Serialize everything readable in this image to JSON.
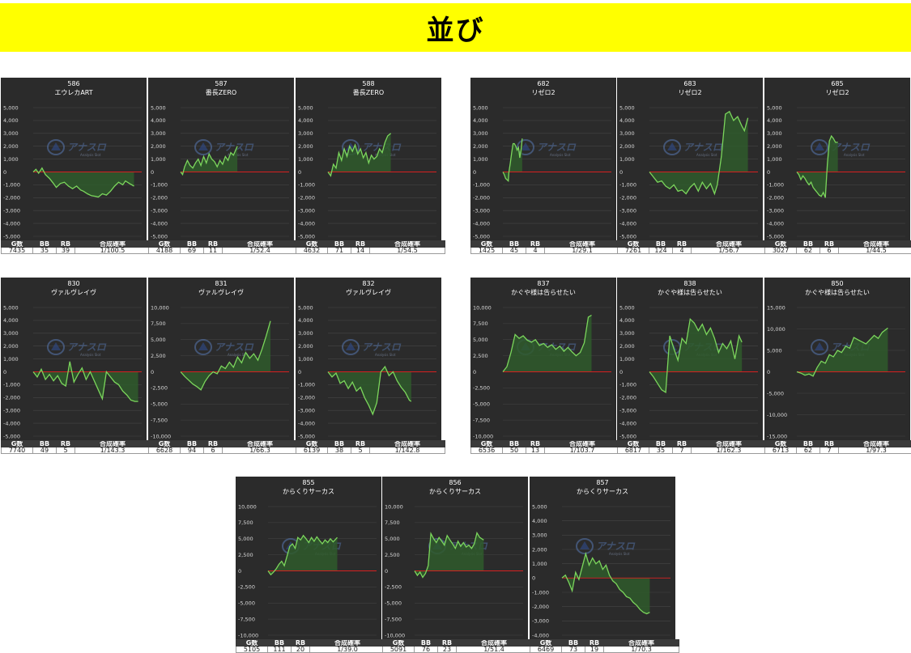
{
  "header": {
    "title": "並び"
  },
  "colors": {
    "banner": "#ffff00",
    "background": "#2b2b2b",
    "line": "#7bd65c",
    "fill": "#2f5b2c",
    "zero": "#d62020"
  },
  "watermark": {
    "brand": "アナスロ",
    "tagline": "Analysis Slot"
  },
  "stat_headers": {
    "g": "G数",
    "bb": "BB",
    "rb": "RB",
    "rate": "合成確率"
  },
  "chart_data": [
    {
      "type": "line",
      "number": "586",
      "title": "エウレカART",
      "ylim": [
        -5000,
        5000
      ],
      "yticks": [
        "5,000",
        "4,000",
        "3,000",
        "2,000",
        "1,000",
        "0",
        "-1,000",
        "-2,000",
        "-3,000",
        "-4,000",
        "-5,000"
      ],
      "x": [
        0,
        200,
        400,
        650,
        900,
        1200,
        1500,
        1700,
        2000,
        2300,
        2600,
        2900,
        3200,
        3500,
        3700,
        4000,
        4300,
        4600,
        4800,
        5100,
        5400,
        5700,
        6000,
        6300,
        6600,
        6800,
        7100,
        7435
      ],
      "y": [
        0,
        200,
        -100,
        300,
        -200,
        -500,
        -900,
        -1200,
        -900,
        -800,
        -1100,
        -1300,
        -1100,
        -1400,
        -1500,
        -1700,
        -1850,
        -1900,
        -1950,
        -1700,
        -1800,
        -1500,
        -1100,
        -800,
        -1000,
        -700,
        -900,
        -1100
      ],
      "stats": {
        "g": "7435",
        "bb": "35",
        "rb": "39",
        "rate": "1/100.5"
      }
    },
    {
      "type": "line",
      "number": "587",
      "title": "番長ZERO",
      "ylim": [
        -5000,
        5000
      ],
      "yticks": [
        "5,000",
        "4,000",
        "3,000",
        "2,000",
        "1,000",
        "0",
        "-1,000",
        "-2,000",
        "-3,000",
        "-4,000",
        "-5,000"
      ],
      "x": [
        0,
        150,
        300,
        500,
        700,
        900,
        1100,
        1300,
        1500,
        1700,
        1900,
        2100,
        2300,
        2500,
        2700,
        2900,
        3100,
        3300,
        3500,
        3700,
        3900,
        4188
      ],
      "y": [
        0,
        -200,
        400,
        900,
        500,
        300,
        700,
        1000,
        500,
        1200,
        700,
        1400,
        1000,
        800,
        400,
        900,
        600,
        1200,
        900,
        1500,
        1300,
        2000
      ],
      "stats": {
        "g": "4188",
        "bb": "69",
        "rb": "11",
        "rate": "1/52.4"
      }
    },
    {
      "type": "line",
      "number": "588",
      "title": "番長ZERO",
      "ylim": [
        -5000,
        5000
      ],
      "yticks": [
        "5,000",
        "4,000",
        "3,000",
        "2,000",
        "1,000",
        "0",
        "-1,000",
        "-2,000",
        "-3,000",
        "-4,000",
        "-5,000"
      ],
      "x": [
        0,
        200,
        400,
        600,
        800,
        1000,
        1200,
        1400,
        1600,
        1800,
        2000,
        2200,
        2400,
        2600,
        2800,
        3000,
        3200,
        3400,
        3600,
        3800,
        4000,
        4200,
        4400,
        4632
      ],
      "y": [
        0,
        -300,
        600,
        300,
        1500,
        900,
        1800,
        1200,
        2000,
        1600,
        2100,
        1400,
        1800,
        1100,
        1500,
        700,
        1300,
        1000,
        1200,
        1800,
        1500,
        2300,
        2800,
        3000
      ],
      "stats": {
        "g": "4632",
        "bb": "71",
        "rb": "14",
        "rate": "1/54.5"
      }
    },
    {
      "type": "line",
      "number": "682",
      "title": "リゼロ2",
      "ylim": [
        -5000,
        5000
      ],
      "yticks": [
        "5,000",
        "4,000",
        "3,000",
        "2,000",
        "1,000",
        "0",
        "-1,000",
        "-2,000",
        "-3,000",
        "-4,000",
        "-5,000"
      ],
      "x": [
        0,
        100,
        200,
        300,
        400,
        450,
        550,
        650,
        750,
        850,
        950,
        1050,
        1150,
        1250,
        1350,
        1425
      ],
      "y": [
        0,
        -200,
        -500,
        -600,
        -700,
        0,
        700,
        1500,
        2200,
        2200,
        2000,
        1700,
        1900,
        1100,
        1800,
        2600
      ],
      "stats": {
        "g": "1425",
        "bb": "45",
        "rb": "4",
        "rate": "1/29.1"
      }
    },
    {
      "type": "line",
      "number": "683",
      "title": "リゼロ2",
      "ylim": [
        -5000,
        5000
      ],
      "yticks": [
        "5,000",
        "4,000",
        "3,000",
        "2,000",
        "1,000",
        "0",
        "-1,000",
        "-2,000",
        "-3,000",
        "-4,000",
        "-5,000"
      ],
      "x": [
        0,
        300,
        600,
        900,
        1200,
        1500,
        1800,
        2100,
        2400,
        2700,
        3000,
        3300,
        3600,
        3900,
        4200,
        4500,
        4800,
        5000,
        5300,
        5600,
        5900,
        6200,
        6500,
        6800,
        7000,
        7261
      ],
      "y": [
        0,
        -400,
        -800,
        -700,
        -1100,
        -1300,
        -1000,
        -1500,
        -1400,
        -1700,
        -1200,
        -900,
        -1500,
        -800,
        -1300,
        -900,
        -1700,
        -1000,
        1200,
        4500,
        4700,
        4000,
        4300,
        3600,
        3200,
        4200
      ],
      "stats": {
        "g": "7261",
        "bb": "124",
        "rb": "4",
        "rate": "1/56.7"
      }
    },
    {
      "type": "line",
      "number": "685",
      "title": "リゼロ2",
      "ylim": [
        -5000,
        5000
      ],
      "yticks": [
        "5,000",
        "4,000",
        "3,000",
        "2,000",
        "1,000",
        "0",
        "-1,000",
        "-2,000",
        "-3,000",
        "-4,000",
        "-5,000"
      ],
      "x": [
        0,
        150,
        300,
        450,
        600,
        750,
        900,
        1050,
        1200,
        1350,
        1500,
        1650,
        1800,
        1950,
        2100,
        2250,
        2400,
        2550,
        2700,
        2850,
        3027
      ],
      "y": [
        0,
        -200,
        -600,
        -300,
        -500,
        -800,
        -1000,
        -800,
        -1200,
        -1400,
        -1600,
        -1800,
        -1900,
        -1600,
        -2000,
        600,
        2400,
        2800,
        2600,
        2300,
        2300
      ],
      "stats": {
        "g": "3027",
        "bb": "62",
        "rb": "6",
        "rate": "1/44.5"
      }
    },
    {
      "type": "line",
      "number": "830",
      "title": "ヴァルヴレイヴ",
      "ylim": [
        -5000,
        5000
      ],
      "yticks": [
        "5,000",
        "4,000",
        "3,000",
        "2,000",
        "1,000",
        "0",
        "-1,000",
        "-2,000",
        "-3,000",
        "-4,000",
        "-5,000"
      ],
      "x": [
        0,
        300,
        600,
        900,
        1200,
        1500,
        1800,
        2100,
        2400,
        2700,
        3000,
        3300,
        3600,
        3900,
        4200,
        4500,
        4800,
        5100,
        5400,
        5700,
        6000,
        6300,
        6600,
        6900,
        7200,
        7500,
        7740
      ],
      "y": [
        0,
        -400,
        200,
        -600,
        -200,
        -700,
        -300,
        -900,
        -1100,
        800,
        -800,
        -200,
        300,
        -600,
        0,
        -700,
        -1400,
        -2100,
        0,
        -400,
        -800,
        -1000,
        -1500,
        -1800,
        -2200,
        -2300,
        -2300
      ],
      "stats": {
        "g": "7740",
        "bb": "49",
        "rb": "5",
        "rate": "1/143.3"
      }
    },
    {
      "type": "line",
      "number": "831",
      "title": "ヴァルヴレイヴ",
      "ylim": [
        -10000,
        10000
      ],
      "yticks": [
        "10,000",
        "7,500",
        "5,000",
        "2,500",
        "0",
        "-2,500",
        "-5,000",
        "-7,500",
        "-10,000"
      ],
      "x": [
        0,
        300,
        600,
        900,
        1200,
        1500,
        1800,
        2100,
        2400,
        2700,
        3000,
        3300,
        3600,
        3900,
        4200,
        4500,
        4800,
        5100,
        5400,
        5700,
        6000,
        6300,
        6628
      ],
      "y": [
        0,
        -700,
        -1300,
        -1900,
        -2300,
        -2800,
        -1500,
        -600,
        0,
        -300,
        900,
        500,
        1500,
        700,
        2300,
        1400,
        3000,
        2100,
        2800,
        1800,
        3500,
        5500,
        7900
      ],
      "stats": {
        "g": "6628",
        "bb": "94",
        "rb": "6",
        "rate": "1/66.3"
      }
    },
    {
      "type": "line",
      "number": "832",
      "title": "ヴァルヴレイヴ",
      "ylim": [
        -5000,
        5000
      ],
      "yticks": [
        "5,000",
        "4,000",
        "3,000",
        "2,000",
        "1,000",
        "0",
        "-1,000",
        "-2,000",
        "-3,000",
        "-4,000",
        "-5,000"
      ],
      "x": [
        0,
        300,
        600,
        900,
        1200,
        1500,
        1800,
        2100,
        2400,
        2700,
        3000,
        3300,
        3600,
        3900,
        4200,
        4500,
        4800,
        5100,
        5400,
        5700,
        6000,
        6139
      ],
      "y": [
        0,
        -400,
        -100,
        -900,
        -700,
        -1300,
        -800,
        -1500,
        -1200,
        -2000,
        -2600,
        -3300,
        -2400,
        0,
        400,
        -300,
        0,
        -700,
        -1200,
        -1600,
        -2200,
        -2300
      ],
      "stats": {
        "g": "6139",
        "bb": "38",
        "rb": "5",
        "rate": "1/142.8"
      }
    },
    {
      "type": "line",
      "number": "837",
      "title": "かぐや様は告らせたい",
      "ylim": [
        -10000,
        10000
      ],
      "yticks": [
        "10,000",
        "7,500",
        "5,000",
        "2,500",
        "0",
        "-2,500",
        "-5,000",
        "-7,500",
        "-10,000"
      ],
      "x": [
        0,
        300,
        600,
        900,
        1200,
        1500,
        1800,
        2100,
        2400,
        2700,
        3000,
        3300,
        3600,
        3900,
        4200,
        4500,
        4800,
        5100,
        5400,
        5700,
        6000,
        6300,
        6536
      ],
      "y": [
        0,
        800,
        3000,
        5800,
        5200,
        5600,
        4900,
        4600,
        5000,
        4100,
        4400,
        3800,
        4200,
        3500,
        4000,
        3200,
        3800,
        3100,
        2500,
        3000,
        4500,
        8500,
        8800
      ],
      "stats": {
        "g": "6536",
        "bb": "50",
        "rb": "13",
        "rate": "1/103.7"
      }
    },
    {
      "type": "line",
      "number": "838",
      "title": "かぐや様は告らせたい",
      "ylim": [
        -5000,
        5000
      ],
      "yticks": [
        "5,000",
        "4,000",
        "3,000",
        "2,000",
        "1,000",
        "0",
        "-1,000",
        "-2,000",
        "-3,000",
        "-4,000",
        "-5,000"
      ],
      "x": [
        0,
        300,
        600,
        900,
        1200,
        1500,
        1800,
        2100,
        2400,
        2700,
        3000,
        3300,
        3600,
        3900,
        4200,
        4500,
        4800,
        5100,
        5400,
        5700,
        6000,
        6300,
        6600,
        6817
      ],
      "y": [
        0,
        -400,
        -900,
        -1400,
        -1600,
        2800,
        1800,
        900,
        2600,
        2200,
        4100,
        3800,
        3200,
        3700,
        2900,
        3400,
        2600,
        1500,
        2200,
        1800,
        2400,
        1000,
        2800,
        2300
      ],
      "stats": {
        "g": "6817",
        "bb": "35",
        "rb": "7",
        "rate": "1/162.3"
      }
    },
    {
      "type": "line",
      "number": "850",
      "title": "かぐや様は告らせたい",
      "ylim": [
        -15000,
        15000
      ],
      "yticks": [
        "15,000",
        "10,000",
        "5,000",
        "0",
        "-5,000",
        "-10,000",
        "-15,000"
      ],
      "x": [
        0,
        300,
        600,
        900,
        1200,
        1500,
        1800,
        2100,
        2400,
        2700,
        3000,
        3300,
        3600,
        3900,
        4200,
        4500,
        4800,
        5100,
        5400,
        5700,
        6000,
        6300,
        6713
      ],
      "y": [
        0,
        -300,
        -800,
        -500,
        -1000,
        1000,
        2500,
        2000,
        4000,
        3500,
        5000,
        4500,
        6000,
        5500,
        8000,
        7500,
        7000,
        6500,
        7500,
        8500,
        7800,
        9200,
        10200
      ],
      "stats": {
        "g": "6713",
        "bb": "62",
        "rb": "7",
        "rate": "1/97.3"
      }
    },
    {
      "type": "line",
      "number": "855",
      "title": "からくりサーカス",
      "ylim": [
        -10000,
        10000
      ],
      "yticks": [
        "10,000",
        "7,500",
        "5,000",
        "2,500",
        "0",
        "-2,500",
        "-5,000",
        "-7,500",
        "-10,000"
      ],
      "x": [
        0,
        200,
        400,
        600,
        800,
        1000,
        1200,
        1400,
        1600,
        1800,
        2000,
        2200,
        2400,
        2600,
        2800,
        3000,
        3200,
        3400,
        3600,
        3800,
        4000,
        4200,
        4400,
        4600,
        4800,
        5105
      ],
      "y": [
        0,
        -600,
        -200,
        300,
        1000,
        1500,
        800,
        2300,
        3800,
        4200,
        3500,
        5200,
        4800,
        5500,
        5000,
        4400,
        5200,
        4600,
        5300,
        4700,
        4200,
        4800,
        4400,
        5000,
        4500,
        5200
      ],
      "stats": {
        "g": "5105",
        "bb": "111",
        "rb": "20",
        "rate": "1/39.0"
      }
    },
    {
      "type": "line",
      "number": "856",
      "title": "からくりサーカス",
      "ylim": [
        -10000,
        10000
      ],
      "yticks": [
        "10,000",
        "7,500",
        "5,000",
        "2,500",
        "0",
        "-2,500",
        "-5,000",
        "-7,500",
        "-10,000"
      ],
      "x": [
        0,
        200,
        400,
        600,
        800,
        1000,
        1200,
        1400,
        1600,
        1800,
        2000,
        2200,
        2400,
        2600,
        2800,
        3000,
        3200,
        3400,
        3600,
        3800,
        4000,
        4200,
        4400,
        4600,
        4800,
        5091
      ],
      "y": [
        0,
        -700,
        -200,
        -1000,
        -400,
        800,
        5800,
        5000,
        4400,
        5200,
        4600,
        4000,
        5500,
        4800,
        4200,
        3500,
        4600,
        3800,
        4400,
        3700,
        4000,
        3500,
        4200,
        5900,
        5200,
        4800
      ],
      "stats": {
        "g": "5091",
        "bb": "76",
        "rb": "23",
        "rate": "1/51.4"
      }
    },
    {
      "type": "line",
      "number": "857",
      "title": "からくりサーカス",
      "ylim": [
        -4000,
        5000
      ],
      "yticks": [
        "5,000",
        "4,000",
        "3,000",
        "2,000",
        "1,000",
        "0",
        "-1,000",
        "-2,000",
        "-3,000",
        "-4,000"
      ],
      "x": [
        0,
        250,
        500,
        750,
        1000,
        1250,
        1500,
        1750,
        2000,
        2250,
        2500,
        2750,
        3000,
        3250,
        3500,
        3750,
        4000,
        4250,
        4500,
        4750,
        5000,
        5250,
        5500,
        5750,
        6000,
        6250,
        6469
      ],
      "y": [
        0,
        200,
        -300,
        -900,
        400,
        -100,
        800,
        1700,
        900,
        1400,
        1000,
        1200,
        600,
        900,
        200,
        -200,
        -400,
        -800,
        -1000,
        -1300,
        -1400,
        -1700,
        -1900,
        -2200,
        -2400,
        -2500,
        -2400
      ],
      "stats": {
        "g": "6469",
        "bb": "73",
        "rb": "19",
        "rate": "1/70.3"
      }
    }
  ]
}
